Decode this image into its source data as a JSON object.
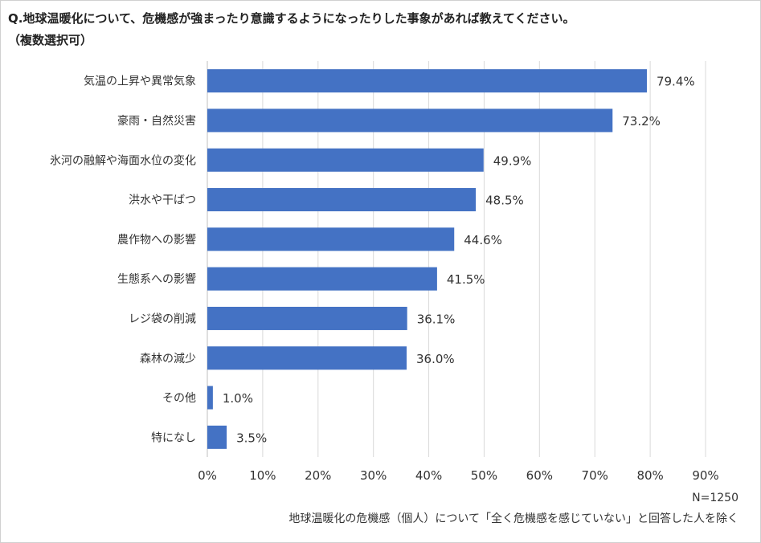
{
  "title": "Q.地球温暖化について、危機感が強まったり意識するようになったりした事象があれば教えてください。",
  "subtitle": "（複数選択可）",
  "sample_size": "N=1250",
  "footnote": "地球温暖化の危機感（個人）について「全く危機感を感じていない」と回答した人を除く",
  "colors": {
    "bar": "#4472C4",
    "grid": "#d9d9d9",
    "text": "#333333"
  },
  "chart_data": {
    "type": "bar",
    "orientation": "horizontal",
    "categories": [
      "気温の上昇や異常気象",
      "豪雨・自然災害",
      "氷河の融解や海面水位の変化",
      "洪水や干ばつ",
      "農作物への影響",
      "生態系への影響",
      "レジ袋の削減",
      "森林の減少",
      "その他",
      "特になし"
    ],
    "values": [
      79.4,
      73.2,
      49.9,
      48.5,
      44.6,
      41.5,
      36.1,
      36.0,
      1.0,
      3.5
    ],
    "data_labels": [
      "79.4%",
      "73.2%",
      "49.9%",
      "48.5%",
      "44.6%",
      "41.5%",
      "36.1%",
      "36.0%",
      "1.0%",
      "3.5%"
    ],
    "xlim": [
      0,
      90
    ],
    "x_ticks": [
      "0%",
      "10%",
      "20%",
      "30%",
      "40%",
      "50%",
      "60%",
      "70%",
      "80%",
      "90%"
    ],
    "grid": true,
    "legend": false
  }
}
